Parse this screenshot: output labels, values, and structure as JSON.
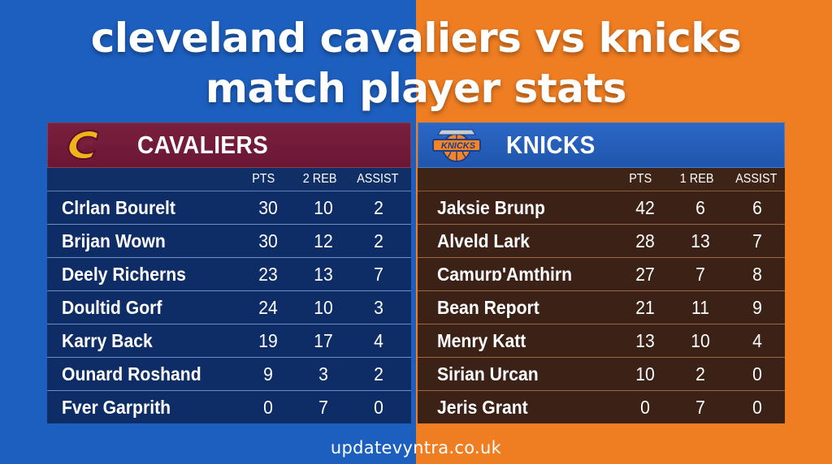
{
  "title": {
    "line1": "cleveland cavaliers vs knicks",
    "line2": "match player stats"
  },
  "colors": {
    "left_bg": "#1d5fbf",
    "right_bg": "#ef7d22",
    "cavs_header": "#7b1f3f",
    "knicks_header": "#2c67c6"
  },
  "cavaliers": {
    "team_name": "CAVALIERS",
    "logo_icon": "cavaliers-c-logo",
    "headers": [
      "PTS",
      "2 REB",
      "ASSIST"
    ],
    "players": [
      {
        "name": "Clrlan Bourelt",
        "pts": "30",
        "reb": "10",
        "ast": "2"
      },
      {
        "name": "Brijan Wown",
        "pts": "30",
        "reb": "12",
        "ast": "2"
      },
      {
        "name": "Deely Richerns",
        "pts": "23",
        "reb": "13",
        "ast": "7"
      },
      {
        "name": "Doultid Gorf",
        "pts": "24",
        "reb": "10",
        "ast": "3"
      },
      {
        "name": "Karry Back",
        "pts": "19",
        "reb": "17",
        "ast": "4"
      },
      {
        "name": "Ounard Roshand",
        "pts": "9",
        "reb": "3",
        "ast": "2"
      },
      {
        "name": "Fver Garprith",
        "pts": "0",
        "reb": "7",
        "ast": "0"
      }
    ]
  },
  "knicks": {
    "team_name": "KNICKS",
    "logo_icon": "knicks-basketball-logo",
    "logo_text": "KNICKS",
    "headers": [
      "PTS",
      "1 REB",
      "ASSIST"
    ],
    "players": [
      {
        "name": "Jaksie Brunp",
        "pts": "42",
        "reb": "6",
        "ast": "6"
      },
      {
        "name": "Alveld Lark",
        "pts": "28",
        "reb": "13",
        "ast": "7"
      },
      {
        "name": "Camurɒ'Amthirn",
        "pts": "27",
        "reb": "7",
        "ast": "8"
      },
      {
        "name": "Bean Report",
        "pts": "21",
        "reb": "11",
        "ast": "9"
      },
      {
        "name": "Menry Katt",
        "pts": "13",
        "reb": "10",
        "ast": "4"
      },
      {
        "name": "Sirian Urcan",
        "pts": "10",
        "reb": "2",
        "ast": "0"
      },
      {
        "name": "Jeris Grant",
        "pts": "0",
        "reb": "7",
        "ast": "0"
      }
    ]
  },
  "footer": "updatevyntra.co.uk"
}
